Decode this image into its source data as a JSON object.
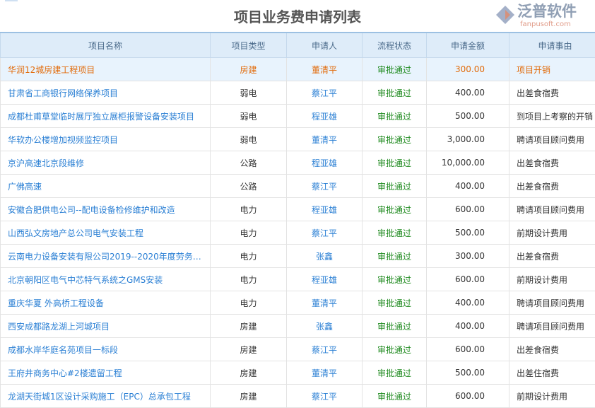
{
  "title": "项目业务费申请列表",
  "columns": [
    "项目名称",
    "项目类型",
    "申请人",
    "流程状态",
    "申请金额",
    "申请事由"
  ],
  "rows": [
    [
      "华润12城房建工程项目",
      "房建",
      "董清平",
      "审批通过",
      "300.00",
      "项目开销"
    ],
    [
      "甘肃省工商银行网络保养项目",
      "弱电",
      "蔡江平",
      "审批通过",
      "400.00",
      "出差食宿费"
    ],
    [
      "成都杜甫草堂临时展厅独立展柜报警设备安装项目",
      "弱电",
      "程亚雄",
      "审批通过",
      "500.00",
      "到项目上考察的开销"
    ],
    [
      "华软办公楼增加视频监控项目",
      "弱电",
      "董清平",
      "审批通过",
      "3,000.00",
      "聘请项目顾问费用"
    ],
    [
      "京沪高速北京段维修",
      "公路",
      "程亚雄",
      "审批通过",
      "10,000.00",
      "出差食宿费"
    ],
    [
      "广佛高速",
      "公路",
      "蔡江平",
      "审批通过",
      "400.00",
      "出差食宿费"
    ],
    [
      "安徽合肥供电公司--配电设备检修维护和改造",
      "电力",
      "程亚雄",
      "审批通过",
      "600.00",
      "聘请项目顾问费用"
    ],
    [
      "山西弘文房地产总公司电气安装工程",
      "电力",
      "蔡江平",
      "审批通过",
      "500.00",
      "前期设计费用"
    ],
    [
      "云南电力设备安装有限公司2019--2020年度劳务分…",
      "电力",
      "张鑫",
      "审批通过",
      "300.00",
      "出差食宿费"
    ],
    [
      "北京朝阳区电气中芯特气系统之GMS安装",
      "电力",
      "程亚雄",
      "审批通过",
      "600.00",
      "前期设计费用"
    ],
    [
      "重庆华夏 外高桥工程设备",
      "电力",
      "董清平",
      "审批通过",
      "400.00",
      "聘请项目顾问费用"
    ],
    [
      "西安成都路龙湖上河城项目",
      "房建",
      "张鑫",
      "审批通过",
      "400.00",
      "聘请项目顾问费用"
    ],
    [
      "成都水岸华庭名苑项目一标段",
      "房建",
      "蔡江平",
      "审批通过",
      "600.00",
      "出差食宿费"
    ],
    [
      "王府井商务中心#2楼遗留工程",
      "房建",
      "董清平",
      "审批通过",
      "500.00",
      "出差住宿费"
    ],
    [
      "龙湖天街城1区设计采购施工（EPC）总承包工程",
      "房建",
      "蔡江平",
      "审批通过",
      "600.00",
      "前期设计费用"
    ]
  ],
  "watermark": {
    "text": "泛普软件",
    "url": "fanpusoft.com"
  }
}
